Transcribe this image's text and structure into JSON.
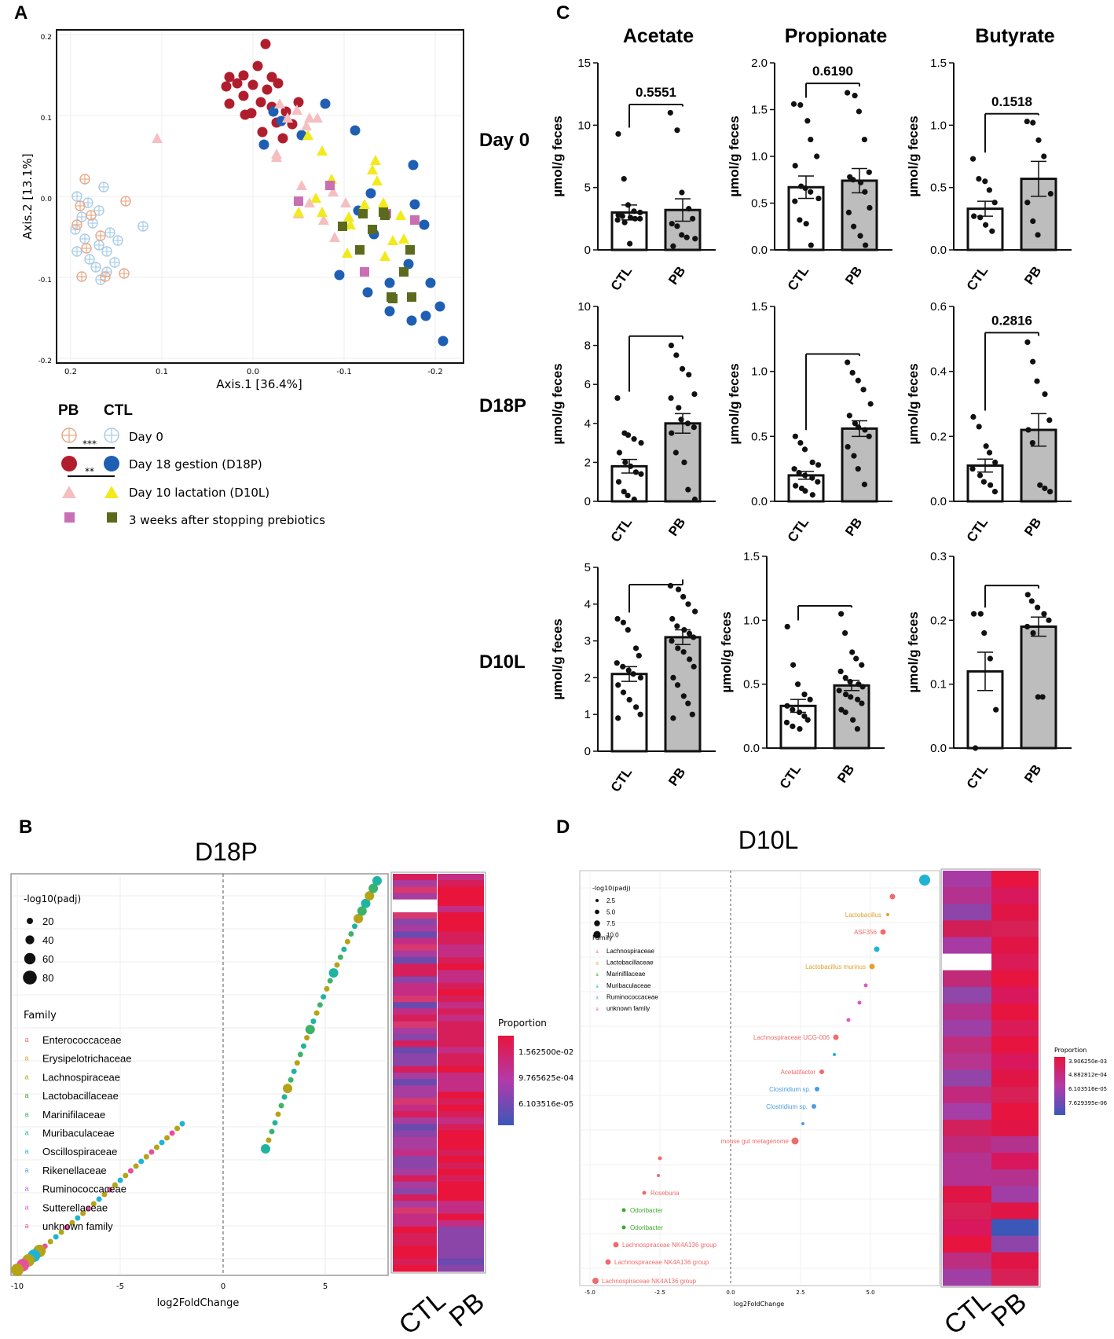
{
  "panels": {
    "a": "A",
    "b": "B",
    "c": "C",
    "d": "D"
  },
  "pcoa": {
    "xlabel": "Axis.1   [36.4%]",
    "ylabel": "Axis.2   [13.1%]",
    "xticks": [
      "0.2",
      "0.1",
      "0.0",
      "-0.1",
      "-0.2"
    ],
    "yticks": [
      "0.2",
      "0.1",
      "0.0",
      "-0.1",
      "-0.2"
    ],
    "legend_group_pb": "PB",
    "legend_group_ctl": "CTL",
    "legend_rows": [
      "Day 0",
      "Day 18 gestion (D18P)",
      "Day 10 lactation (D10L)",
      "3 weeks after stopping prebiotics"
    ],
    "sig1": "***",
    "sig2": "**",
    "colors": {
      "pb_day0": "#E8A98A",
      "ctl_day0": "#A9CDE8",
      "pb_d18p": "#B01E2E",
      "ctl_d18p": "#1F5FB3",
      "pb_d10l": "#F5BFC2",
      "ctl_d10l": "#F2EA1C",
      "pb_post": "#C970B4",
      "ctl_post": "#5C6A1E"
    }
  },
  "scfa": {
    "columns": [
      "Acetate",
      "Propionate",
      "Butyrate"
    ],
    "rows": [
      "Day 0",
      "D18P",
      "D10L"
    ],
    "ylabel": "µmol/g feces",
    "group_labels": [
      "CTL",
      "PB"
    ],
    "bar_fill_ctl": "#FFFFFF",
    "bar_fill_pb": "#BDBDBD"
  },
  "chart_data": [
    {
      "type": "bar",
      "title": "Acetate — Day 0",
      "categories": [
        "CTL",
        "PB"
      ],
      "values": [
        3.0,
        3.2
      ],
      "sem": [
        0.6,
        0.9
      ],
      "ylim": [
        0,
        15
      ],
      "yticks": [
        "0",
        "5",
        "10",
        "15"
      ],
      "p_label": "0.5551",
      "ylabel": "µmol/g feces",
      "points": {
        "CTL": [
          9.3,
          5.7,
          3.6,
          3.1,
          3.0,
          2.8,
          2.7,
          2.6,
          2.5,
          2.5,
          2.4,
          2.2,
          0.5
        ],
        "PB": [
          11.0,
          9.6,
          4.6,
          3.3,
          2.5,
          2.1,
          1.9,
          1.2,
          1.0,
          0.9,
          0.3
        ]
      }
    },
    {
      "type": "bar",
      "title": "Propionate — Day 0",
      "categories": [
        "CTL",
        "PB"
      ],
      "values": [
        0.67,
        0.74
      ],
      "sem": [
        0.12,
        0.13
      ],
      "ylim": [
        0,
        2.0
      ],
      "yticks": [
        "0.0",
        "0.5",
        "1.0",
        "1.5",
        "2.0"
      ],
      "p_label": "0.6190",
      "ylabel": "µmol/g feces",
      "points": {
        "CTL": [
          1.56,
          1.55,
          1.38,
          1.18,
          1.0,
          0.9,
          0.68,
          0.66,
          0.62,
          0.55,
          0.52,
          0.32,
          0.28,
          0.05
        ],
        "PB": [
          1.68,
          1.65,
          1.48,
          1.18,
          0.83,
          0.78,
          0.75,
          0.72,
          0.62,
          0.45,
          0.4,
          0.25,
          0.15,
          0.05
        ]
      }
    },
    {
      "type": "bar",
      "title": "Butyrate — Day 0",
      "categories": [
        "CTL",
        "PB"
      ],
      "values": [
        0.33,
        0.57
      ],
      "sem": [
        0.06,
        0.14
      ],
      "ylim": [
        0,
        1.5
      ],
      "yticks": [
        "0.0",
        "0.5",
        "1.0",
        "1.5"
      ],
      "p_label": "0.1518",
      "ylabel": "µmol/g feces",
      "points": {
        "CTL": [
          0.73,
          0.57,
          0.55,
          0.48,
          0.38,
          0.27,
          0.26,
          0.2,
          0.15
        ],
        "PB": [
          1.03,
          1.02,
          0.88,
          0.75,
          0.45,
          0.38,
          0.23,
          0.12
        ]
      }
    },
    {
      "type": "bar",
      "title": "Acetate — D18P",
      "categories": [
        "CTL",
        "PB"
      ],
      "values": [
        1.8,
        4.0
      ],
      "sem": [
        0.35,
        0.5
      ],
      "ylim": [
        0,
        10
      ],
      "yticks": [
        "0",
        "2",
        "4",
        "6",
        "8",
        "10"
      ],
      "p_label": "",
      "ylabel": "µmol/g feces",
      "points": {
        "CTL": [
          5.3,
          3.5,
          3.4,
          3.2,
          3.0,
          2.5,
          2.0,
          1.8,
          1.5,
          1.4,
          1.0,
          0.5,
          0.3,
          0.1
        ],
        "PB": [
          8.0,
          7.5,
          6.8,
          6.5,
          5.5,
          5.3,
          4.8,
          4.2,
          4.0,
          3.8,
          3.5,
          2.5,
          2.0,
          0.6,
          0.1
        ]
      }
    },
    {
      "type": "bar",
      "title": "Propionate — D18P",
      "categories": [
        "CTL",
        "PB"
      ],
      "values": [
        0.2,
        0.56
      ],
      "sem": [
        0.03,
        0.06
      ],
      "ylim": [
        0,
        1.5
      ],
      "yticks": [
        "0.0",
        "0.5",
        "1.0",
        "1.5"
      ],
      "p_label": "",
      "ylabel": "µmol/g feces",
      "points": {
        "CTL": [
          0.5,
          0.45,
          0.4,
          0.3,
          0.28,
          0.25,
          0.22,
          0.2,
          0.18,
          0.15,
          0.12,
          0.1,
          0.08,
          0.05
        ],
        "PB": [
          1.07,
          0.99,
          0.93,
          0.86,
          0.75,
          0.66,
          0.6,
          0.57,
          0.55,
          0.5,
          0.42,
          0.35,
          0.25,
          0.13
        ]
      }
    },
    {
      "type": "bar",
      "title": "Butyrate — D18P",
      "categories": [
        "CTL",
        "PB"
      ],
      "values": [
        0.11,
        0.22
      ],
      "sem": [
        0.02,
        0.05
      ],
      "ylim": [
        0,
        0.6
      ],
      "yticks": [
        "0.0",
        "0.2",
        "0.4",
        "0.6"
      ],
      "p_label": "0.2816",
      "ylabel": "µmol/g feces",
      "points": {
        "CTL": [
          0.26,
          0.23,
          0.17,
          0.15,
          0.12,
          0.1,
          0.08,
          0.06,
          0.05,
          0.03
        ],
        "PB": [
          0.49,
          0.43,
          0.37,
          0.33,
          0.25,
          0.22,
          0.18,
          0.05,
          0.04,
          0.03
        ]
      }
    },
    {
      "type": "bar",
      "title": "Acetate — D10L",
      "categories": [
        "CTL",
        "PB"
      ],
      "values": [
        2.1,
        3.1
      ],
      "sem": [
        0.2,
        0.2
      ],
      "ylim": [
        0,
        5
      ],
      "yticks": [
        "0",
        "1",
        "2",
        "3",
        "4",
        "5"
      ],
      "p_label": "",
      "ylabel": "µmol/g feces",
      "points": {
        "CTL": [
          3.6,
          3.5,
          3.3,
          2.8,
          2.6,
          2.4,
          2.3,
          2.2,
          2.1,
          2.0,
          1.8,
          1.6,
          1.4,
          1.2,
          1.0,
          0.9
        ],
        "PB": [
          4.5,
          4.4,
          4.2,
          4.0,
          3.8,
          3.6,
          3.4,
          3.3,
          3.2,
          3.1,
          3.0,
          2.8,
          2.7,
          2.5,
          2.3,
          2.0,
          1.8,
          1.5,
          1.3,
          1.0,
          0.9
        ]
      }
    },
    {
      "type": "bar",
      "title": "Propionate — D10L",
      "categories": [
        "CTL",
        "PB"
      ],
      "values": [
        0.33,
        0.49
      ],
      "sem": [
        0.05,
        0.04
      ],
      "ylim": [
        0,
        1.5
      ],
      "yticks": [
        "0.0",
        "0.5",
        "1.0",
        "1.5"
      ],
      "p_label": "",
      "ylabel": "µmol/g feces",
      "points": {
        "CTL": [
          0.95,
          0.65,
          0.5,
          0.42,
          0.38,
          0.33,
          0.3,
          0.28,
          0.25,
          0.22,
          0.2,
          0.17,
          0.15
        ],
        "PB": [
          1.05,
          0.9,
          0.75,
          0.7,
          0.65,
          0.6,
          0.55,
          0.52,
          0.5,
          0.48,
          0.45,
          0.42,
          0.4,
          0.38,
          0.35,
          0.3,
          0.28,
          0.22,
          0.15
        ]
      }
    },
    {
      "type": "bar",
      "title": "Butyrate — D10L",
      "categories": [
        "CTL",
        "PB"
      ],
      "values": [
        0.12,
        0.19
      ],
      "sem": [
        0.03,
        0.015
      ],
      "ylim": [
        0,
        0.3
      ],
      "yticks": [
        "0.0",
        "0.1",
        "0.2",
        "0.3"
      ],
      "p_label": "",
      "ylabel": "µmol/g feces",
      "points": {
        "CTL": [
          0.21,
          0.21,
          0.18,
          0.14,
          0.06,
          0.0
        ],
        "PB": [
          0.24,
          0.23,
          0.22,
          0.21,
          0.2,
          0.19,
          0.18,
          0.08,
          0.08
        ]
      }
    },
    {
      "type": "scatter",
      "title": "D18P",
      "xlabel": "log2FoldChange",
      "xticks": [
        "-10",
        "-5",
        "0",
        "5"
      ],
      "size_legend_title": "-log10(padj)",
      "size_legend": [
        "20",
        "40",
        "60",
        "80"
      ],
      "family_legend_title": "Family",
      "families": [
        "Enterococcaceae",
        "Erysipelotrichaceae",
        "Lachnospiraceae",
        "Lactobacillaceae",
        "Marinifilaceae",
        "Muribaculaceae",
        "Oscillospiraceae",
        "Rikenellaceae",
        "Ruminococcaceae",
        "Sutterellaceae",
        "unknown family"
      ],
      "heatmap_columns": [
        "CTL",
        "PB"
      ],
      "heatmap_legend_title": "Proportion",
      "heatmap_legend": [
        "1.562500e-02",
        "9.765625e-04",
        "6.103516e-05"
      ]
    },
    {
      "type": "scatter",
      "title": "D10L",
      "xlabel": "log2FoldChange",
      "xticks": [
        "-5.0",
        "-2.5",
        "0.0",
        "2.5",
        "5.0"
      ],
      "size_legend_title": "-log10(padj)",
      "size_legend": [
        "2.5",
        "5.0",
        "7.5",
        "10.0"
      ],
      "family_legend_title": "Family",
      "families": [
        "Lachnospiraceae",
        "Lactobacillaceae",
        "Marinifilaceae",
        "Muribaculaceae",
        "Ruminococcaceae",
        "unknown family"
      ],
      "labels": [
        "Lactobacillus",
        "ASF356",
        "Lactobacillus murinus",
        "Lachnospiraceae UCG-006",
        "Acetatifactor",
        "Clostridium sp.",
        "Clostridium sp.",
        "mouse gut metagenome",
        "Roseburia",
        "Odoribacter",
        "Odoribacter",
        "Lachnospiraceae NK4A136 group",
        "Lachnospiraceae NK4A136 group",
        "Lachnospiraceae NK4A136 group"
      ],
      "heatmap_columns": [
        "CTL",
        "PB"
      ],
      "heatmap_legend_title": "Proportion",
      "heatmap_legend": [
        "3.906250e-03",
        "4.882812e-04",
        "6.103516e-05",
        "7.629395e-06"
      ]
    }
  ]
}
